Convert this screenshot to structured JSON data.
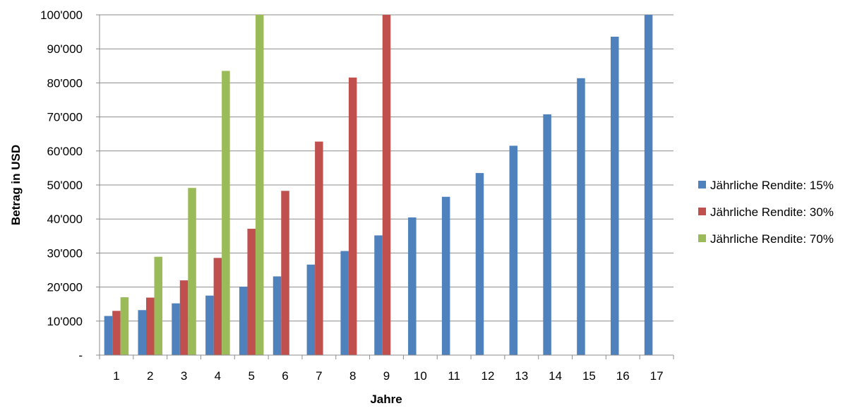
{
  "chart_data": {
    "type": "bar",
    "title": "",
    "xlabel": "Jahre",
    "ylabel": "Betrag in USD",
    "categories": [
      "1",
      "2",
      "3",
      "4",
      "5",
      "6",
      "7",
      "8",
      "9",
      "10",
      "11",
      "12",
      "13",
      "14",
      "15",
      "16",
      "17"
    ],
    "ylim": [
      0,
      100000
    ],
    "yticks": [
      0,
      10000,
      20000,
      30000,
      40000,
      50000,
      60000,
      70000,
      80000,
      90000,
      100000
    ],
    "ytick_labels": [
      "-",
      "10'000",
      "20'000",
      "30'000",
      "40'000",
      "50'000",
      "60'000",
      "70'000",
      "80'000",
      "90'000",
      "100'000"
    ],
    "grid": true,
    "legend_position": "right",
    "series": [
      {
        "name": "Jährliche Rendite: 15%",
        "color": "#4F81BD",
        "values": [
          11500,
          13225,
          15209,
          17490,
          20114,
          23131,
          26600,
          30590,
          35179,
          40456,
          46524,
          53503,
          61528,
          70757,
          81371,
          93576,
          100000
        ]
      },
      {
        "name": "Jährliche Rendite: 30%",
        "color": "#C0504D",
        "values": [
          13000,
          16900,
          21970,
          28561,
          37129,
          48268,
          62749,
          81573,
          100000,
          null,
          null,
          null,
          null,
          null,
          null,
          null,
          null
        ]
      },
      {
        "name": "Jährliche Rendite: 70%",
        "color": "#9BBB59",
        "values": [
          17000,
          28900,
          49130,
          83521,
          100000,
          null,
          null,
          null,
          null,
          null,
          null,
          null,
          null,
          null,
          null,
          null,
          null
        ]
      }
    ]
  }
}
